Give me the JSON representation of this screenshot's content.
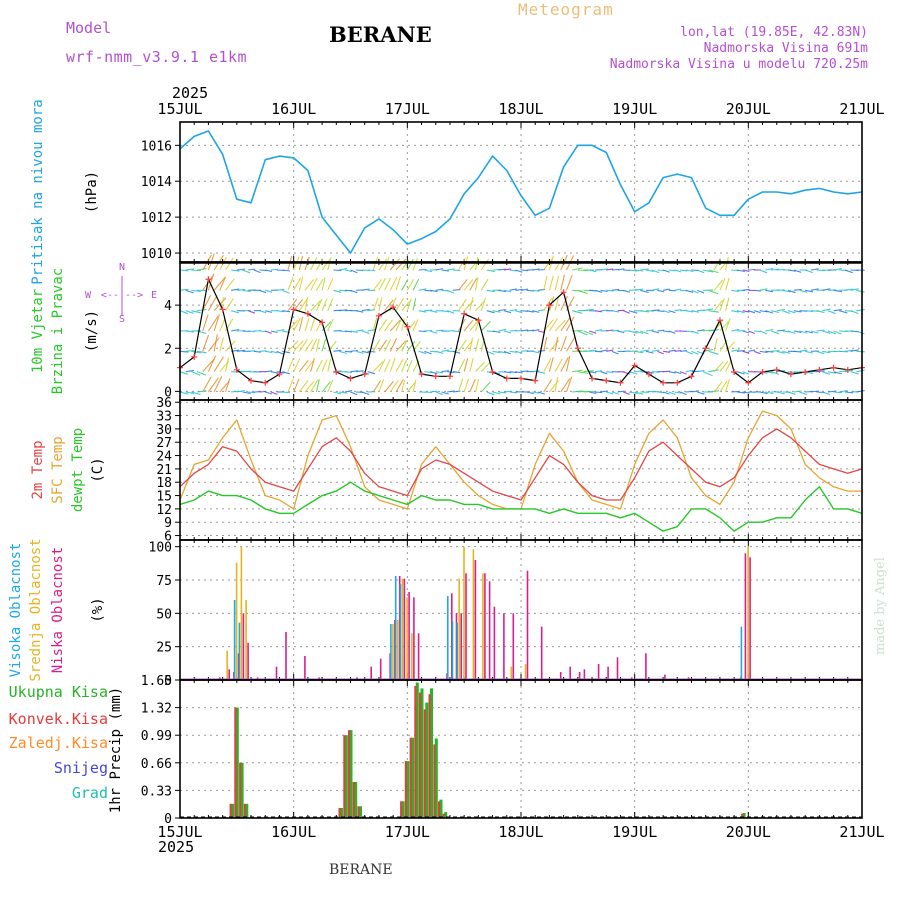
{
  "header": {
    "model_label": "Model",
    "model_name": "wrf-nmm_v3.9.1 e1km",
    "station": "BERANE",
    "meteogram": "Meteogram",
    "lonlat": "lon,lat (19.85E, 42.83N)",
    "elevation": "Nadmorska Visina 691m",
    "model_elevation": "Nadmorska Visina u modelu 720.25m",
    "year": "2025",
    "footer_station": "BERANE",
    "credit": "made by Angel"
  },
  "colors": {
    "pressure": "#1ea5e6",
    "temp2m": "#e64646",
    "sfc_temp": "#e6a532",
    "dewpt": "#28c828",
    "wind_speed": "#000000",
    "wind_marker": "#ff3c3c",
    "high_cloud": "#1eaae6",
    "mid_cloud": "#e6b41e",
    "low_cloud": "#dc1e8c",
    "total_precip": "#28b428",
    "conv_precip": "#e63c3c",
    "frz_precip": "#ff8c28",
    "snow": "#4646dc",
    "hail": "#1ebeb4",
    "axes": "#000000",
    "purple_text": "#b450d2",
    "title_orange": "#ebbe78"
  },
  "chart_data": [
    {
      "type": "line",
      "panel": "pressure",
      "ylabel": [
        "Pritisak na nivou mora",
        "(hPa)"
      ],
      "ylim": [
        1009.5,
        1017.3
      ],
      "yticks": [
        1010,
        1012,
        1014,
        1016
      ],
      "x_day_ticks": [
        "15JUL",
        "16JUL",
        "17JUL",
        "18JUL",
        "19JUL",
        "20JUL",
        "21JUL"
      ],
      "grid": true,
      "x_hours": [
        0,
        3,
        6,
        9,
        12,
        15,
        18,
        21,
        24,
        27,
        30,
        33,
        36,
        39,
        42,
        45,
        48,
        51,
        54,
        57,
        60,
        63,
        66,
        69,
        72,
        75,
        78,
        81,
        84,
        87,
        90,
        93,
        96,
        99,
        102,
        105,
        108,
        111,
        114,
        117,
        120,
        123,
        126,
        129,
        132,
        135,
        138,
        141,
        144
      ],
      "series": [
        {
          "name": "Pritisak na nivou mora",
          "values": [
            1015.8,
            1016.5,
            1016.8,
            1015.5,
            1013.0,
            1012.8,
            1015.2,
            1015.4,
            1015.3,
            1014.6,
            1012.0,
            1011.0,
            1010.0,
            1011.4,
            1011.9,
            1011.3,
            1010.5,
            1010.8,
            1011.2,
            1011.9,
            1013.3,
            1014.2,
            1015.4,
            1014.6,
            1013.2,
            1012.1,
            1012.5,
            1014.8,
            1016.0,
            1016.0,
            1015.6,
            1013.8,
            1012.3,
            1012.8,
            1014.2,
            1014.4,
            1014.2,
            1012.5,
            1012.1,
            1012.1,
            1013.0,
            1013.4,
            1013.4,
            1013.3,
            1013.5,
            1013.6,
            1013.4,
            1013.3,
            1013.4
          ]
        }
      ]
    },
    {
      "type": "line",
      "panel": "wind",
      "ylabel": [
        "10m Vjetar",
        "Brzina i Pravac",
        "(m/s)"
      ],
      "legend": [
        "N",
        "W",
        "E",
        "S"
      ],
      "ylim": [
        -0.4,
        6.0
      ],
      "yticks": [
        0,
        2,
        4
      ],
      "grid": true,
      "x_hours": [
        0,
        3,
        6,
        9,
        12,
        15,
        18,
        21,
        24,
        27,
        30,
        33,
        36,
        39,
        42,
        45,
        48,
        51,
        54,
        57,
        60,
        63,
        66,
        69,
        72,
        75,
        78,
        81,
        84,
        87,
        90,
        93,
        96,
        99,
        102,
        105,
        108,
        111,
        114,
        117,
        120,
        123,
        126,
        129,
        132,
        135,
        138,
        141,
        144
      ],
      "series": [
        {
          "name": "brzina",
          "values": [
            1.1,
            1.6,
            5.2,
            3.8,
            1.0,
            0.5,
            0.4,
            0.8,
            3.8,
            3.6,
            3.2,
            0.9,
            0.6,
            0.8,
            3.5,
            3.9,
            3.0,
            0.8,
            0.7,
            0.7,
            3.6,
            3.3,
            0.9,
            0.6,
            0.6,
            0.5,
            4.0,
            4.6,
            2.0,
            0.6,
            0.5,
            0.4,
            1.2,
            0.8,
            0.4,
            0.4,
            0.7,
            2.0,
            3.3,
            0.9,
            0.4,
            0.9,
            1.0,
            0.8,
            0.9,
            1.0,
            1.1,
            1.0,
            1.1
          ]
        }
      ]
    },
    {
      "type": "line",
      "panel": "temperature",
      "ylabel": [
        "2m Temp",
        "SFC Temp",
        "dewpt Temp",
        "(C)"
      ],
      "ylim": [
        5,
        36.5
      ],
      "yticks": [
        6,
        9,
        12,
        15,
        18,
        21,
        24,
        27,
        30,
        33,
        36
      ],
      "grid": true,
      "x_hours": [
        0,
        3,
        6,
        9,
        12,
        15,
        18,
        21,
        24,
        27,
        30,
        33,
        36,
        39,
        42,
        45,
        48,
        51,
        54,
        57,
        60,
        63,
        66,
        69,
        72,
        75,
        78,
        81,
        84,
        87,
        90,
        93,
        96,
        99,
        102,
        105,
        108,
        111,
        114,
        117,
        120,
        123,
        126,
        129,
        132,
        135,
        138,
        141,
        144
      ],
      "series": [
        {
          "name": "2m Temp",
          "values": [
            17,
            20,
            22,
            26,
            25,
            21,
            18,
            17,
            16,
            21,
            26,
            28,
            25,
            20,
            17,
            16,
            15,
            21,
            23,
            22,
            20,
            18,
            16,
            15,
            14,
            19,
            24,
            22,
            18,
            15,
            14,
            14,
            19,
            25,
            27,
            24,
            21,
            18,
            17,
            19,
            24,
            28,
            30,
            28,
            25,
            22,
            21,
            20,
            21
          ]
        },
        {
          "name": "SFC Temp",
          "values": [
            14,
            22,
            23,
            28,
            32,
            23,
            15,
            14,
            12,
            24,
            32,
            33,
            26,
            17,
            14,
            13,
            12,
            22,
            26,
            22,
            18,
            15,
            13,
            12,
            12,
            22,
            29,
            25,
            18,
            14,
            13,
            12,
            22,
            29,
            32,
            28,
            19,
            15,
            13,
            18,
            28,
            34,
            33,
            30,
            22,
            19,
            17,
            16,
            16
          ]
        },
        {
          "name": "dewpt Temp",
          "values": [
            13,
            14,
            16,
            15,
            15,
            14,
            12,
            11,
            11,
            13,
            15,
            16,
            18,
            16,
            15,
            14,
            13,
            15,
            14,
            14,
            13,
            13,
            12,
            12,
            12,
            12,
            11,
            12,
            11,
            11,
            11,
            10,
            11,
            9,
            7,
            8,
            12,
            12,
            10,
            7,
            9,
            9,
            10,
            10,
            14,
            17,
            12,
            12,
            11
          ]
        }
      ]
    },
    {
      "type": "bar",
      "panel": "clouds",
      "ylabel": [
        "Visoka Oblacnost",
        "Srednja Oblacnost",
        "Niska Oblacnost",
        "(%)"
      ],
      "ylim": [
        0,
        105
      ],
      "yticks": [
        0,
        25,
        50,
        75,
        100
      ],
      "grid": true,
      "x_hours": [
        8,
        10,
        11,
        12,
        13,
        14,
        16,
        20,
        22,
        26,
        29,
        37,
        40,
        42,
        44,
        45,
        46,
        47,
        48,
        49,
        50,
        56,
        57,
        58,
        59,
        60,
        62,
        64,
        65,
        66,
        68,
        70,
        73,
        76,
        80,
        82,
        84,
        85,
        88,
        90,
        92,
        95,
        98,
        102,
        107,
        118,
        119,
        120
      ],
      "series": [
        {
          "name": "Visoka Oblacnost",
          "values": [
            0,
            0,
            0,
            60,
            43,
            0,
            0,
            0,
            0,
            0,
            0,
            0,
            0,
            0,
            0,
            42,
            78,
            72,
            0,
            0,
            0,
            0,
            63,
            44,
            43,
            0,
            0,
            0,
            0,
            0,
            0,
            0,
            0,
            0,
            0,
            0,
            0,
            0,
            0,
            0,
            0,
            0,
            0,
            0,
            0,
            0,
            40,
            0
          ]
        },
        {
          "name": "Srednja Oblacnost",
          "values": [
            0,
            22,
            0,
            88,
            100,
            60,
            0,
            0,
            0,
            0,
            0,
            0,
            0,
            0,
            0,
            42,
            45,
            76,
            62,
            35,
            0,
            0,
            0,
            0,
            76,
            100,
            98,
            80,
            0,
            0,
            0,
            10,
            12,
            0,
            0,
            0,
            0,
            0,
            0,
            0,
            0,
            0,
            0,
            0,
            0,
            0,
            0,
            100
          ]
        },
        {
          "name": "Niska Oblacnost",
          "values": [
            2,
            8,
            6,
            20,
            50,
            28,
            2,
            10,
            36,
            18,
            2,
            2,
            10,
            16,
            20,
            45,
            78,
            76,
            66,
            62,
            35,
            5,
            65,
            50,
            50,
            80,
            90,
            80,
            74,
            55,
            50,
            50,
            82,
            40,
            6,
            10,
            6,
            8,
            12,
            10,
            17,
            2,
            20,
            4,
            2,
            2,
            95,
            92
          ]
        }
      ]
    },
    {
      "type": "bar",
      "panel": "precipitation",
      "ylabel": [
        "1hr Precip (mm)"
      ],
      "legend": [
        "Ukupna Kisa",
        "Konvek.Kisa",
        "Zaledj.Kisa",
        "Snijeg",
        "Grad"
      ],
      "ylim": [
        0,
        1.65
      ],
      "yticks": [
        0,
        0.33,
        0.66,
        0.99,
        1.32,
        1.65
      ],
      "grid": true,
      "x_hours": [
        11,
        12,
        13,
        14,
        34,
        35,
        36,
        37,
        38,
        47,
        48,
        49,
        50,
        51,
        52,
        53,
        54,
        55,
        56,
        57,
        58,
        119
      ],
      "series": [
        {
          "name": "Ukupna Kisa",
          "values": [
            0.17,
            1.32,
            0.66,
            0.17,
            0.12,
            0.99,
            1.05,
            0.43,
            0.14,
            0.2,
            0.68,
            0.96,
            1.62,
            1.55,
            1.38,
            1.55,
            0.95,
            0.22,
            0.07,
            0,
            0,
            0.06
          ]
        },
        {
          "name": "Konvek.Kisa",
          "values": [
            0.17,
            1.32,
            0.66,
            0.17,
            0.12,
            0.99,
            1.05,
            0.43,
            0.14,
            0.2,
            0.68,
            0.96,
            1.58,
            1.5,
            1.3,
            1.48,
            0.88,
            0.2,
            0.05,
            0,
            0,
            0.05
          ]
        }
      ]
    }
  ]
}
